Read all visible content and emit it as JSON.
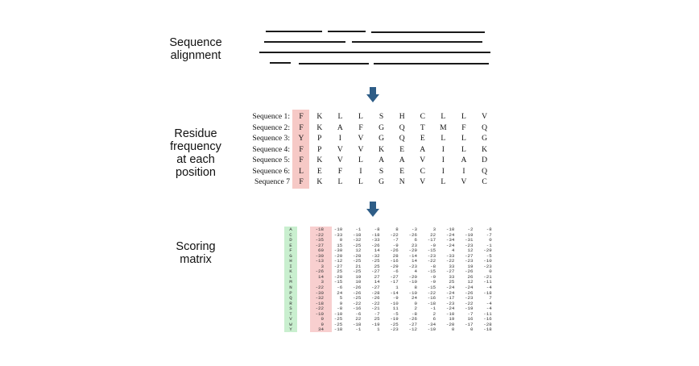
{
  "labels": {
    "alignment": [
      "Sequence",
      "alignment"
    ],
    "frequency": [
      "Residue",
      "frequency",
      "at each",
      "position"
    ],
    "scoring": [
      "Scoring",
      "matrix"
    ]
  },
  "colors": {
    "highlight": "#f6c9c6",
    "aa_column": "#c9efcf",
    "arrow": "#2e5d87"
  },
  "sequences": [
    {
      "name": "Sequence 1:",
      "residues": [
        "F",
        "K",
        "L",
        "L",
        "S",
        "H",
        "C",
        "L",
        "L",
        "V"
      ]
    },
    {
      "name": "Sequence 2:",
      "residues": [
        "F",
        "K",
        "A",
        "F",
        "G",
        "Q",
        "T",
        "M",
        "F",
        "Q"
      ]
    },
    {
      "name": "Sequence 3:",
      "residues": [
        "Y",
        "P",
        "I",
        "V",
        "G",
        "Q",
        "E",
        "L",
        "L",
        "G"
      ]
    },
    {
      "name": "Sequence 4:",
      "residues": [
        "F",
        "P",
        "V",
        "V",
        "K",
        "E",
        "A",
        "I",
        "L",
        "K"
      ]
    },
    {
      "name": "Sequence 5:",
      "residues": [
        "F",
        "K",
        "V",
        "L",
        "A",
        "A",
        "V",
        "I",
        "A",
        "D"
      ]
    },
    {
      "name": "Sequence 6:",
      "residues": [
        "L",
        "E",
        "F",
        "I",
        "S",
        "E",
        "C",
        "I",
        "I",
        "Q"
      ]
    },
    {
      "name": "Sequence 7",
      "residues": [
        "F",
        "K",
        "L",
        "L",
        "G",
        "N",
        "V",
        "L",
        "V",
        "C"
      ]
    }
  ],
  "scoring_matrix": {
    "amino_acids": [
      "A",
      "C",
      "D",
      "E",
      "F",
      "G",
      "H",
      "I",
      "K",
      "L",
      "M",
      "N",
      "P",
      "Q",
      "R",
      "S",
      "T",
      "V",
      "W",
      "Y"
    ],
    "rows": [
      [
        "-18",
        "-10",
        "-1",
        "-8",
        "8",
        "-3",
        "3",
        "-10",
        "-2",
        "-8"
      ],
      [
        "-22",
        "-33",
        "-18",
        "-18",
        "-22",
        "-26",
        "22",
        "-24",
        "-19",
        "-7"
      ],
      [
        "-35",
        "0",
        "-32",
        "-33",
        "-7",
        "6",
        "-17",
        "-34",
        "-31",
        "0"
      ],
      [
        "-27",
        "15",
        "-25",
        "-26",
        "-9",
        "23",
        "-9",
        "-24",
        "-23",
        "-1"
      ],
      [
        "60",
        "-30",
        "12",
        "14",
        "-26",
        "-29",
        "-15",
        "4",
        "12",
        "-29"
      ],
      [
        "-30",
        "-20",
        "-28",
        "-32",
        "28",
        "-14",
        "-23",
        "-33",
        "-27",
        "-5"
      ],
      [
        "-13",
        "-12",
        "-25",
        "-25",
        "-16",
        "14",
        "-22",
        "-22",
        "-23",
        "-10"
      ],
      [
        "3",
        "-27",
        "21",
        "25",
        "-29",
        "-23",
        "-8",
        "33",
        "19",
        "-23"
      ],
      [
        "-26",
        "25",
        "-25",
        "-27",
        "-6",
        "4",
        "-15",
        "-27",
        "-26",
        "0"
      ],
      [
        "14",
        "-28",
        "19",
        "27",
        "-27",
        "-20",
        "-9",
        "33",
        "26",
        "-21"
      ],
      [
        "3",
        "-15",
        "10",
        "14",
        "-17",
        "-10",
        "-9",
        "25",
        "12",
        "-11"
      ],
      [
        "-22",
        "-6",
        "-26",
        "-27",
        "1",
        "8",
        "-15",
        "-24",
        "-24",
        "-4"
      ],
      [
        "-30",
        "24",
        "-26",
        "-28",
        "-14",
        "-10",
        "-22",
        "-24",
        "-26",
        "-18"
      ],
      [
        "-32",
        "5",
        "-25",
        "-26",
        "-9",
        "24",
        "-16",
        "-17",
        "-23",
        "7"
      ],
      [
        "-18",
        "9",
        "-22",
        "-22",
        "-10",
        "0",
        "-18",
        "-23",
        "-22",
        "-4"
      ],
      [
        "-22",
        "-8",
        "-16",
        "-21",
        "11",
        "2",
        "-1",
        "-24",
        "-19",
        "-4"
      ],
      [
        "-10",
        "-10",
        "-6",
        "-7",
        "-5",
        "-8",
        "2",
        "-10",
        "-7",
        "-11"
      ],
      [
        "0",
        "-25",
        "22",
        "25",
        "-19",
        "-26",
        "6",
        "19",
        "16",
        "-16"
      ],
      [
        "9",
        "-25",
        "-18",
        "-19",
        "-25",
        "-27",
        "-34",
        "-20",
        "-17",
        "-28"
      ],
      [
        "34",
        "-18",
        "-1",
        "1",
        "-23",
        "-12",
        "-19",
        "0",
        "0",
        "-18"
      ]
    ]
  }
}
